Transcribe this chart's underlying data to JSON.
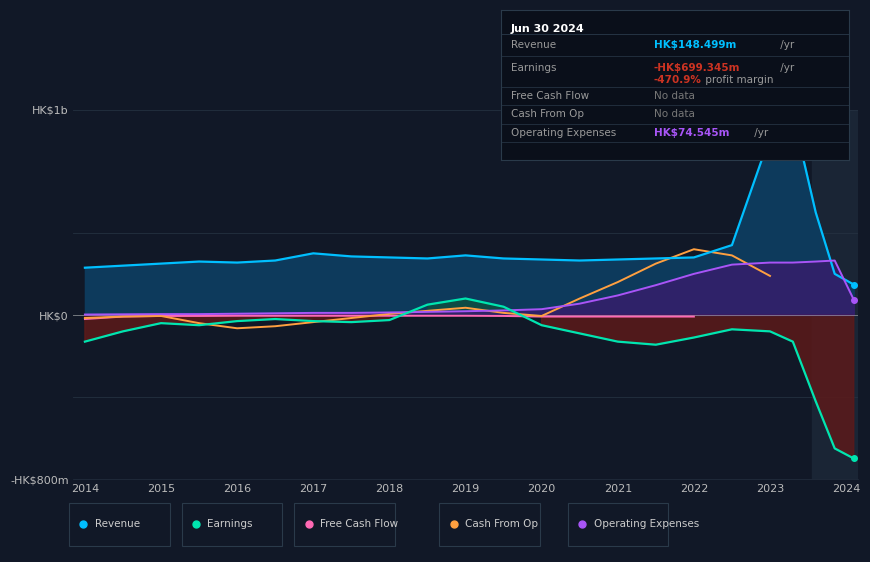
{
  "bg_color": "#111827",
  "chart_bg": "#111827",
  "zero_line_color": "#aaaaaa",
  "years": [
    2014,
    2014.5,
    2015,
    2015.5,
    2016,
    2016.5,
    2017,
    2017.5,
    2018,
    2018.5,
    2019,
    2019.5,
    2020,
    2020.5,
    2021,
    2021.5,
    2022,
    2022.5,
    2023,
    2023.3,
    2023.6,
    2023.85,
    2024.1
  ],
  "revenue": [
    230,
    240,
    250,
    260,
    255,
    265,
    300,
    285,
    280,
    275,
    290,
    275,
    270,
    265,
    270,
    275,
    280,
    340,
    870,
    980,
    500,
    200,
    148
  ],
  "earnings": [
    -130,
    -80,
    -40,
    -50,
    -30,
    -20,
    -30,
    -35,
    -25,
    50,
    80,
    40,
    -50,
    -90,
    -130,
    -145,
    -110,
    -70,
    -80,
    -130,
    -420,
    -650,
    -699
  ],
  "free_cash_flow": [
    -20,
    -8,
    -5,
    -5,
    -4,
    -4,
    -4,
    -4,
    -4,
    -4,
    -4,
    -5,
    -8,
    -8,
    -8,
    -8,
    -8,
    null,
    null,
    null,
    null,
    null,
    null
  ],
  "cash_from_op": [
    -15,
    -8,
    -5,
    -40,
    -65,
    -55,
    -35,
    -15,
    5,
    20,
    35,
    10,
    -5,
    80,
    160,
    250,
    320,
    290,
    190,
    null,
    null,
    null,
    null
  ],
  "operating_expenses": [
    2,
    3,
    4,
    4,
    6,
    8,
    10,
    10,
    12,
    15,
    18,
    22,
    28,
    55,
    95,
    145,
    200,
    245,
    255,
    255,
    260,
    265,
    74.545
  ],
  "revenue_color": "#00bfff",
  "earnings_color": "#00e5b0",
  "fcf_color": "#ff69b4",
  "cfop_color": "#ffa040",
  "opex_color": "#a855f7",
  "revenue_fill": "#0d3a5c",
  "earnings_fill_pos": "#0d5040",
  "earnings_fill_neg": "#5c1a1a",
  "opex_fill": "#3b1a6e",
  "ylim_min": -800,
  "ylim_max": 1000,
  "xlabel_ticks": [
    "2014",
    "2015",
    "2016",
    "2017",
    "2018",
    "2019",
    "2020",
    "2021",
    "2022",
    "2023",
    "2024"
  ],
  "xlabel_values": [
    2014,
    2015,
    2016,
    2017,
    2018,
    2019,
    2020,
    2021,
    2022,
    2023,
    2024
  ],
  "ytick_labels": [
    "HK$1b",
    "",
    "HK$0",
    "",
    "-HK$800m"
  ],
  "ytick_values": [
    1000,
    400,
    0,
    -400,
    -800
  ],
  "info_box": {
    "date": "Jun 30 2024",
    "revenue_label": "Revenue",
    "revenue_value": "HK$148.499m",
    "revenue_unit": " /yr",
    "revenue_color": "#00bfff",
    "earnings_label": "Earnings",
    "earnings_value": "-HK$699.345m",
    "earnings_unit": " /yr",
    "earnings_color": "#cc3322",
    "margin_value": "-470.9%",
    "margin_text": " profit margin",
    "margin_color": "#cc3322",
    "fcf_label": "Free Cash Flow",
    "fcf_value": "No data",
    "cfop_label": "Cash From Op",
    "cfop_value": "No data",
    "opex_label": "Operating Expenses",
    "opex_value": "HK$74.545m",
    "opex_unit": " /yr",
    "opex_color": "#a855f7",
    "nodata_color": "#777777",
    "label_color": "#999999",
    "box_bg": "#0a0f1a",
    "box_border": "#2a3a4a",
    "title_color": "#ffffff"
  },
  "legend": [
    {
      "label": "Revenue",
      "color": "#00bfff"
    },
    {
      "label": "Earnings",
      "color": "#00e5b0"
    },
    {
      "label": "Free Cash Flow",
      "color": "#ff69b4"
    },
    {
      "label": "Cash From Op",
      "color": "#ffa040"
    },
    {
      "label": "Operating Expenses",
      "color": "#a855f7"
    }
  ],
  "highlight_x_start": 2023.55,
  "highlight_x_end": 2024.15,
  "xmin": 2013.85,
  "xmax": 2024.15
}
